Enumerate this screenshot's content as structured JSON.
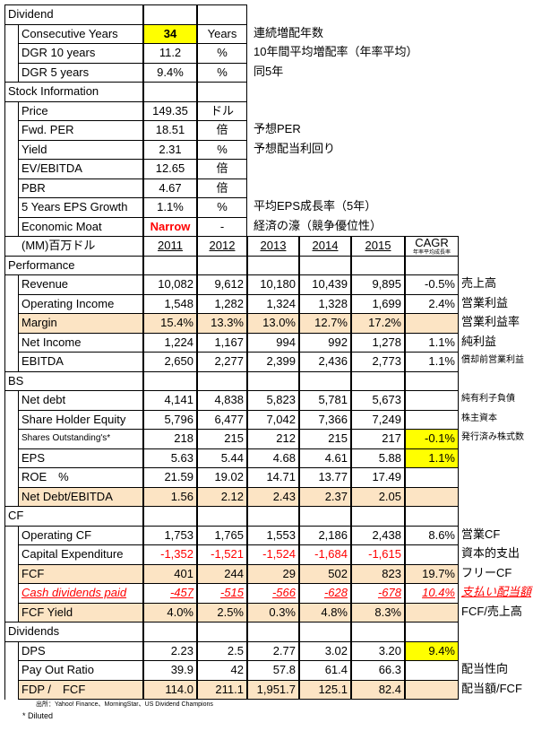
{
  "summary": [
    {
      "title": "Dividend",
      "rows": [
        {
          "label": "Consecutive Years",
          "value": "34",
          "unit": "Years",
          "note": "連続増配年数",
          "style": "yellow-bold"
        },
        {
          "label": "DGR 10 years",
          "value": "11.2",
          "unit": "%",
          "note": "10年間平均増配率（年率平均）"
        },
        {
          "label": "DGR 5 years",
          "value": "9.4%",
          "unit": "%",
          "note": "同5年"
        }
      ]
    },
    {
      "title": "Stock Information",
      "rows": [
        {
          "label": "Price",
          "value": "149.35",
          "unit": "ドル"
        },
        {
          "label": "Fwd. PER",
          "value": "18.51",
          "unit": "倍",
          "note": "予想PER"
        },
        {
          "label": "Yield",
          "value": "2.31",
          "unit": "%",
          "note": "予想配当利回り"
        },
        {
          "label": "EV/EBITDA",
          "value": "12.65",
          "unit": "倍"
        },
        {
          "label": "PBR",
          "value": "4.67",
          "unit": "倍"
        },
        {
          "label": "5 Years EPS Growth",
          "value": "1.1%",
          "unit": "%",
          "note": "平均EPS成長率（5年）"
        },
        {
          "label": "Economic Moat",
          "value": "Narrow",
          "unit": "-",
          "note": "経済の濠（競争優位性）",
          "style": "red-bold"
        }
      ]
    }
  ],
  "financials": {
    "header": {
      "unit": "(MM)百万ドル",
      "years": [
        "2011",
        "2012",
        "2013",
        "2014",
        "2015"
      ],
      "cagr": "CAGR",
      "cagr_note": "年率平均成長率"
    },
    "sections": [
      {
        "title": "Performance",
        "rows": [
          {
            "label": "Revenue",
            "values": [
              "10,082",
              "9,612",
              "10,180",
              "10,439",
              "9,895"
            ],
            "cagr": "-0.5%",
            "note": "売上高"
          },
          {
            "label": "Operating Income",
            "values": [
              "1,548",
              "1,282",
              "1,324",
              "1,328",
              "1,699"
            ],
            "cagr": "2.4%",
            "note": "営業利益"
          },
          {
            "label": "Margin",
            "values": [
              "15.4%",
              "13.3%",
              "13.0%",
              "12.7%",
              "17.2%"
            ],
            "cagr": null,
            "note": "営業利益率",
            "style": "beige"
          },
          {
            "label": "Net Income",
            "values": [
              "1,224",
              "1,167",
              "994",
              "992",
              "1,278"
            ],
            "cagr": "1.1%",
            "note": "純利益"
          },
          {
            "label": "EBITDA",
            "values": [
              "2,650",
              "2,277",
              "2,399",
              "2,436",
              "2,773"
            ],
            "cagr": "1.1%",
            "note": "償却前営業利益",
            "note_small": true
          }
        ]
      },
      {
        "title": "BS",
        "rows": [
          {
            "label": "Net debt",
            "values": [
              "4,141",
              "4,838",
              "5,823",
              "5,781",
              "5,673"
            ],
            "cagr": null,
            "note": "純有利子負債",
            "note_small": true
          },
          {
            "label": "Share Holder Equity",
            "values": [
              "5,796",
              "6,477",
              "7,042",
              "7,366",
              "7,249"
            ],
            "cagr": null,
            "note": "株主資本",
            "note_small": true
          },
          {
            "label": "Shares Outstanding's*",
            "values": [
              "218",
              "215",
              "212",
              "215",
              "217"
            ],
            "cagr": "-0.1%",
            "cagr_highlight": true,
            "note": "発行済み株式数",
            "note_small": true,
            "label_small": true
          },
          {
            "label": "EPS",
            "values": [
              "5.63",
              "5.44",
              "4.68",
              "4.61",
              "5.88"
            ],
            "cagr": "1.1%",
            "cagr_highlight": true
          },
          {
            "label": "ROE　%",
            "values": [
              "21.59",
              "19.02",
              "14.71",
              "13.77",
              "17.49"
            ],
            "cagr": null
          },
          {
            "label": "Net Debt/EBITDA",
            "values": [
              "1.56",
              "2.12",
              "2.43",
              "2.37",
              "2.05"
            ],
            "cagr": null,
            "style": "beige"
          }
        ]
      },
      {
        "title": "CF",
        "rows": [
          {
            "label": "Operating CF",
            "values": [
              "1,753",
              "1,765",
              "1,553",
              "2,186",
              "2,438"
            ],
            "cagr": "8.6%",
            "note": "営業CF"
          },
          {
            "label": "Capital Expenditure",
            "values": [
              "-1,352",
              "-1,521",
              "-1,524",
              "-1,684",
              "-1,615"
            ],
            "cagr": null,
            "note": "資本的支出",
            "style": "red"
          },
          {
            "label": "FCF",
            "values": [
              "401",
              "244",
              "29",
              "502",
              "823"
            ],
            "cagr": "19.7%",
            "note": "フリーCF",
            "style": "beige"
          },
          {
            "label": "Cash dividends paid",
            "values": [
              "-457",
              "-515",
              "-566",
              "-628",
              "-678"
            ],
            "cagr": "10.4%",
            "note": "支払い配当額",
            "style": "italic-red"
          },
          {
            "label": "FCF Yield",
            "values": [
              "4.0%",
              "2.5%",
              "0.3%",
              "4.8%",
              "8.3%"
            ],
            "cagr": null,
            "note": "FCF/売上高",
            "style": "beige"
          }
        ]
      },
      {
        "title": "Dividends",
        "rows": [
          {
            "label": "DPS",
            "values": [
              "2.23",
              "2.5",
              "2.77",
              "3.02",
              "3.20"
            ],
            "cagr": "9.4%",
            "cagr_highlight": true
          },
          {
            "label": "Pay Out Ratio",
            "values": [
              "39.9",
              "42",
              "57.8",
              "61.4",
              "66.3"
            ],
            "cagr": null,
            "note": "配当性向"
          },
          {
            "label": "FDP /　FCF",
            "values": [
              "114.0",
              "211.1",
              "1,951.7",
              "125.1",
              "82.4"
            ],
            "cagr": null,
            "note": "配当額/FCF",
            "style": "beige"
          }
        ]
      }
    ]
  },
  "footer": {
    "source": "出所：Yahoo! Finance、MorningStar、US Dividend Champions",
    "note": "* Diluted"
  }
}
